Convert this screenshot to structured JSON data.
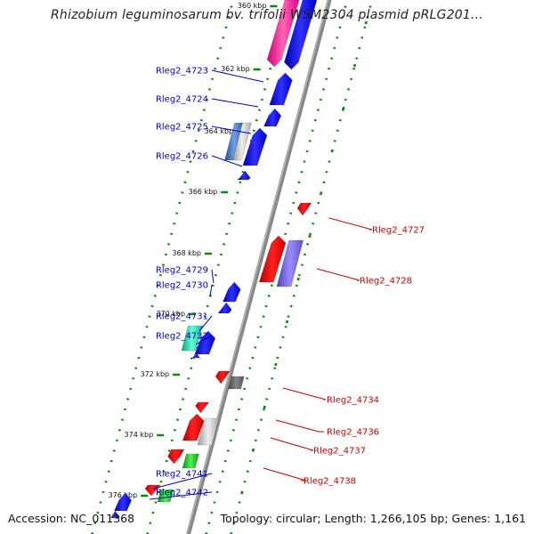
{
  "title": "Rhizobium leguminosarum bv. trifolii WSM2304 plasmid pRLG201...",
  "footer": {
    "accession": "Accession: NC_011368",
    "info": "Topology: circular; Length: 1,266,105 bp; Genes: 1,161"
  },
  "colors": {
    "backbone": "#888888",
    "left_label": "#0000cc",
    "right_label": "#cc0000",
    "tick": "#0a8a0a"
  },
  "ticks": [
    "360 kbp",
    "362 kbp",
    "364 kbp",
    "366 kbp",
    "368 kbp",
    "370 kbp",
    "372 kbp",
    "374 kbp",
    "376 kbp"
  ],
  "left_genes": [
    "Rleg2_4723",
    "Rleg2_4724",
    "Rleg2_4725",
    "Rleg2_4726",
    "Rleg2_4729",
    "Rleg2_4730",
    "Rleg2_4731",
    "Rleg2_4732",
    "Rleg2_4741",
    "Rleg2_4742"
  ],
  "right_genes": [
    "Rleg2_4727",
    "Rleg2_4728",
    "Rleg2_4734",
    "Rleg2_4736",
    "Rleg2_4737",
    "Rleg2_4738"
  ]
}
